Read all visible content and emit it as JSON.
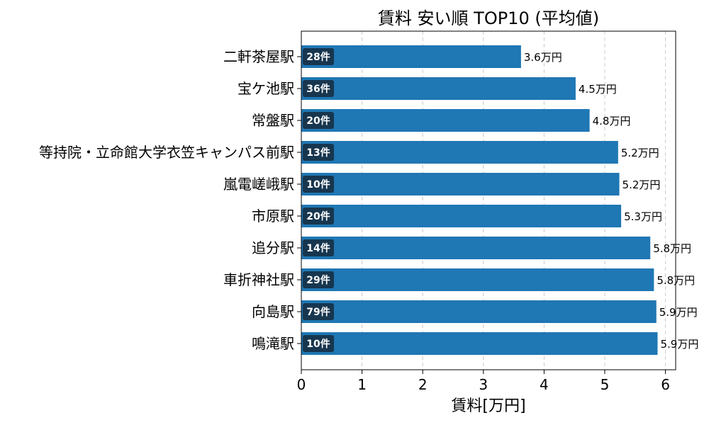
{
  "chart_data": {
    "type": "bar",
    "orientation": "horizontal",
    "title": "賃料 安い順 TOP10 (平均値)",
    "xlabel": "賃料[万円]",
    "ylabel": "",
    "xlim": [
      0,
      6.17
    ],
    "xticks": [
      0,
      1,
      2,
      3,
      4,
      5,
      6
    ],
    "grid": "x-dashed",
    "bar_color": "#1f77b4",
    "badge_color": "#17364f",
    "value_suffix": "万円",
    "categories": [
      "二軒茶屋駅",
      "宝ケ池駅",
      "常盤駅",
      "等持院・立命館大学衣笠キャンパス前駅",
      "嵐電嵯峨駅",
      "市原駅",
      "追分駅",
      "車折神社駅",
      "向島駅",
      "鳴滝駅"
    ],
    "values": [
      3.62,
      4.52,
      4.75,
      5.22,
      5.24,
      5.27,
      5.75,
      5.81,
      5.85,
      5.87
    ],
    "value_labels": [
      "3.6万円",
      "4.5万円",
      "4.8万円",
      "5.2万円",
      "5.2万円",
      "5.3万円",
      "5.8万円",
      "5.8万円",
      "5.9万円",
      "5.9万円"
    ],
    "counts": [
      "28件",
      "36件",
      "20件",
      "13件",
      "10件",
      "20件",
      "14件",
      "29件",
      "79件",
      "10件"
    ]
  }
}
